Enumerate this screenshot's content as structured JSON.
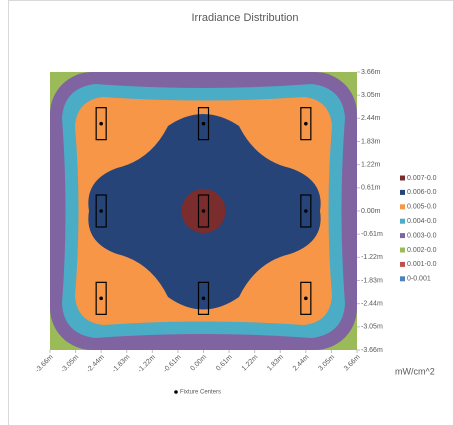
{
  "chart_data": {
    "type": "contour",
    "title": "Irradiance Distribution",
    "unit_label": "mW/cm^2",
    "xlim": [
      -3.66,
      3.66
    ],
    "ylim": [
      -3.66,
      3.66
    ],
    "xticks": [
      {
        "value": -3.66,
        "label": "-3.66m"
      },
      {
        "value": -3.05,
        "label": "-3.05m"
      },
      {
        "value": -2.44,
        "label": "-2.44m"
      },
      {
        "value": -1.83,
        "label": "-1.83m"
      },
      {
        "value": -1.22,
        "label": "-1.22m"
      },
      {
        "value": -0.61,
        "label": "-0.61m"
      },
      {
        "value": 0,
        "label": "0.00m"
      },
      {
        "value": 0.61,
        "label": "0.61m"
      },
      {
        "value": 1.22,
        "label": "1.22m"
      },
      {
        "value": 1.83,
        "label": "1.83m"
      },
      {
        "value": 2.44,
        "label": "2.44m"
      },
      {
        "value": 3.05,
        "label": "3.05m"
      },
      {
        "value": 3.66,
        "label": "3.66m"
      }
    ],
    "yticks": [
      {
        "value": 3.66,
        "label": "3.66m"
      },
      {
        "value": 3.05,
        "label": "3.05m"
      },
      {
        "value": 2.44,
        "label": "2.44m"
      },
      {
        "value": 1.83,
        "label": "1.83m"
      },
      {
        "value": 1.22,
        "label": "1.22m"
      },
      {
        "value": 0.61,
        "label": "0.61m"
      },
      {
        "value": 0,
        "label": "0.00m"
      },
      {
        "value": -0.61,
        "label": "-0.61m"
      },
      {
        "value": -1.22,
        "label": "-1.22m"
      },
      {
        "value": -1.83,
        "label": "-1.83m"
      },
      {
        "value": -2.44,
        "label": "-2.44m"
      },
      {
        "value": -3.05,
        "label": "-3.05m"
      },
      {
        "value": -3.66,
        "label": "-3.66m"
      }
    ],
    "series": [
      {
        "name": "0.007-0.0",
        "color": "#7b2c2c"
      },
      {
        "name": "0.006-0.0",
        "color": "#264478"
      },
      {
        "name": "0.005-0.0",
        "color": "#f79646"
      },
      {
        "name": "0.004-0.0",
        "color": "#4bacc6"
      },
      {
        "name": "0.003-0.0",
        "color": "#8064a2"
      },
      {
        "name": "0.002-0.0",
        "color": "#9bbb59"
      },
      {
        "name": "0.001-0.0",
        "color": "#c0504d"
      },
      {
        "name": "0-0.001",
        "color": "#4f81bd"
      }
    ],
    "points": {
      "name": "Fixture Centers",
      "color": "#000000",
      "x": [
        -2.44,
        0,
        2.44,
        -2.44,
        0,
        2.44,
        -2.44,
        0,
        2.44
      ],
      "y": [
        2.3,
        2.3,
        2.3,
        0,
        0,
        0,
        -2.3,
        -2.3,
        -2.3
      ]
    }
  }
}
